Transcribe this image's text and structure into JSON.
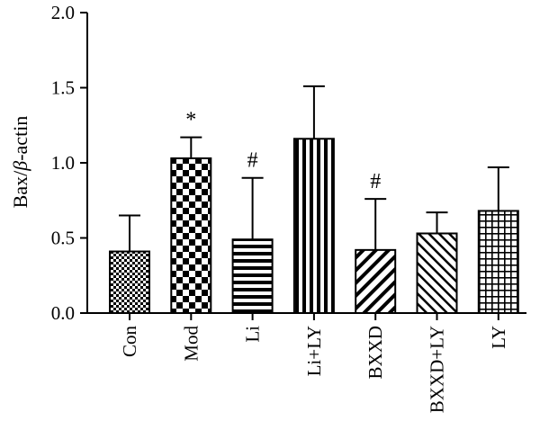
{
  "chart_data": {
    "type": "bar",
    "ylabel": "Bax/β-actin",
    "xlabel": "",
    "ylim": [
      0,
      2.0
    ],
    "yticks": [
      "0.0",
      "0.5",
      "1.0",
      "1.5",
      "2.0"
    ],
    "grid": false,
    "legend": "none",
    "categories": [
      "Con",
      "Mod",
      "Li",
      "Li+LY",
      "BXXD",
      "BXXD+LY",
      "LY"
    ],
    "values": [
      0.41,
      1.03,
      0.49,
      1.16,
      0.42,
      0.53,
      0.68
    ],
    "error_upper": [
      0.65,
      1.17,
      0.9,
      1.51,
      0.76,
      0.67,
      0.97
    ],
    "fill_patterns": [
      "fine-checker",
      "large-checker",
      "horizontal-lines",
      "vertical-lines",
      "diagonal-up",
      "diagonal-down",
      "grid"
    ],
    "annotations": [
      "",
      "*",
      "#",
      "",
      "#",
      "",
      ""
    ]
  }
}
